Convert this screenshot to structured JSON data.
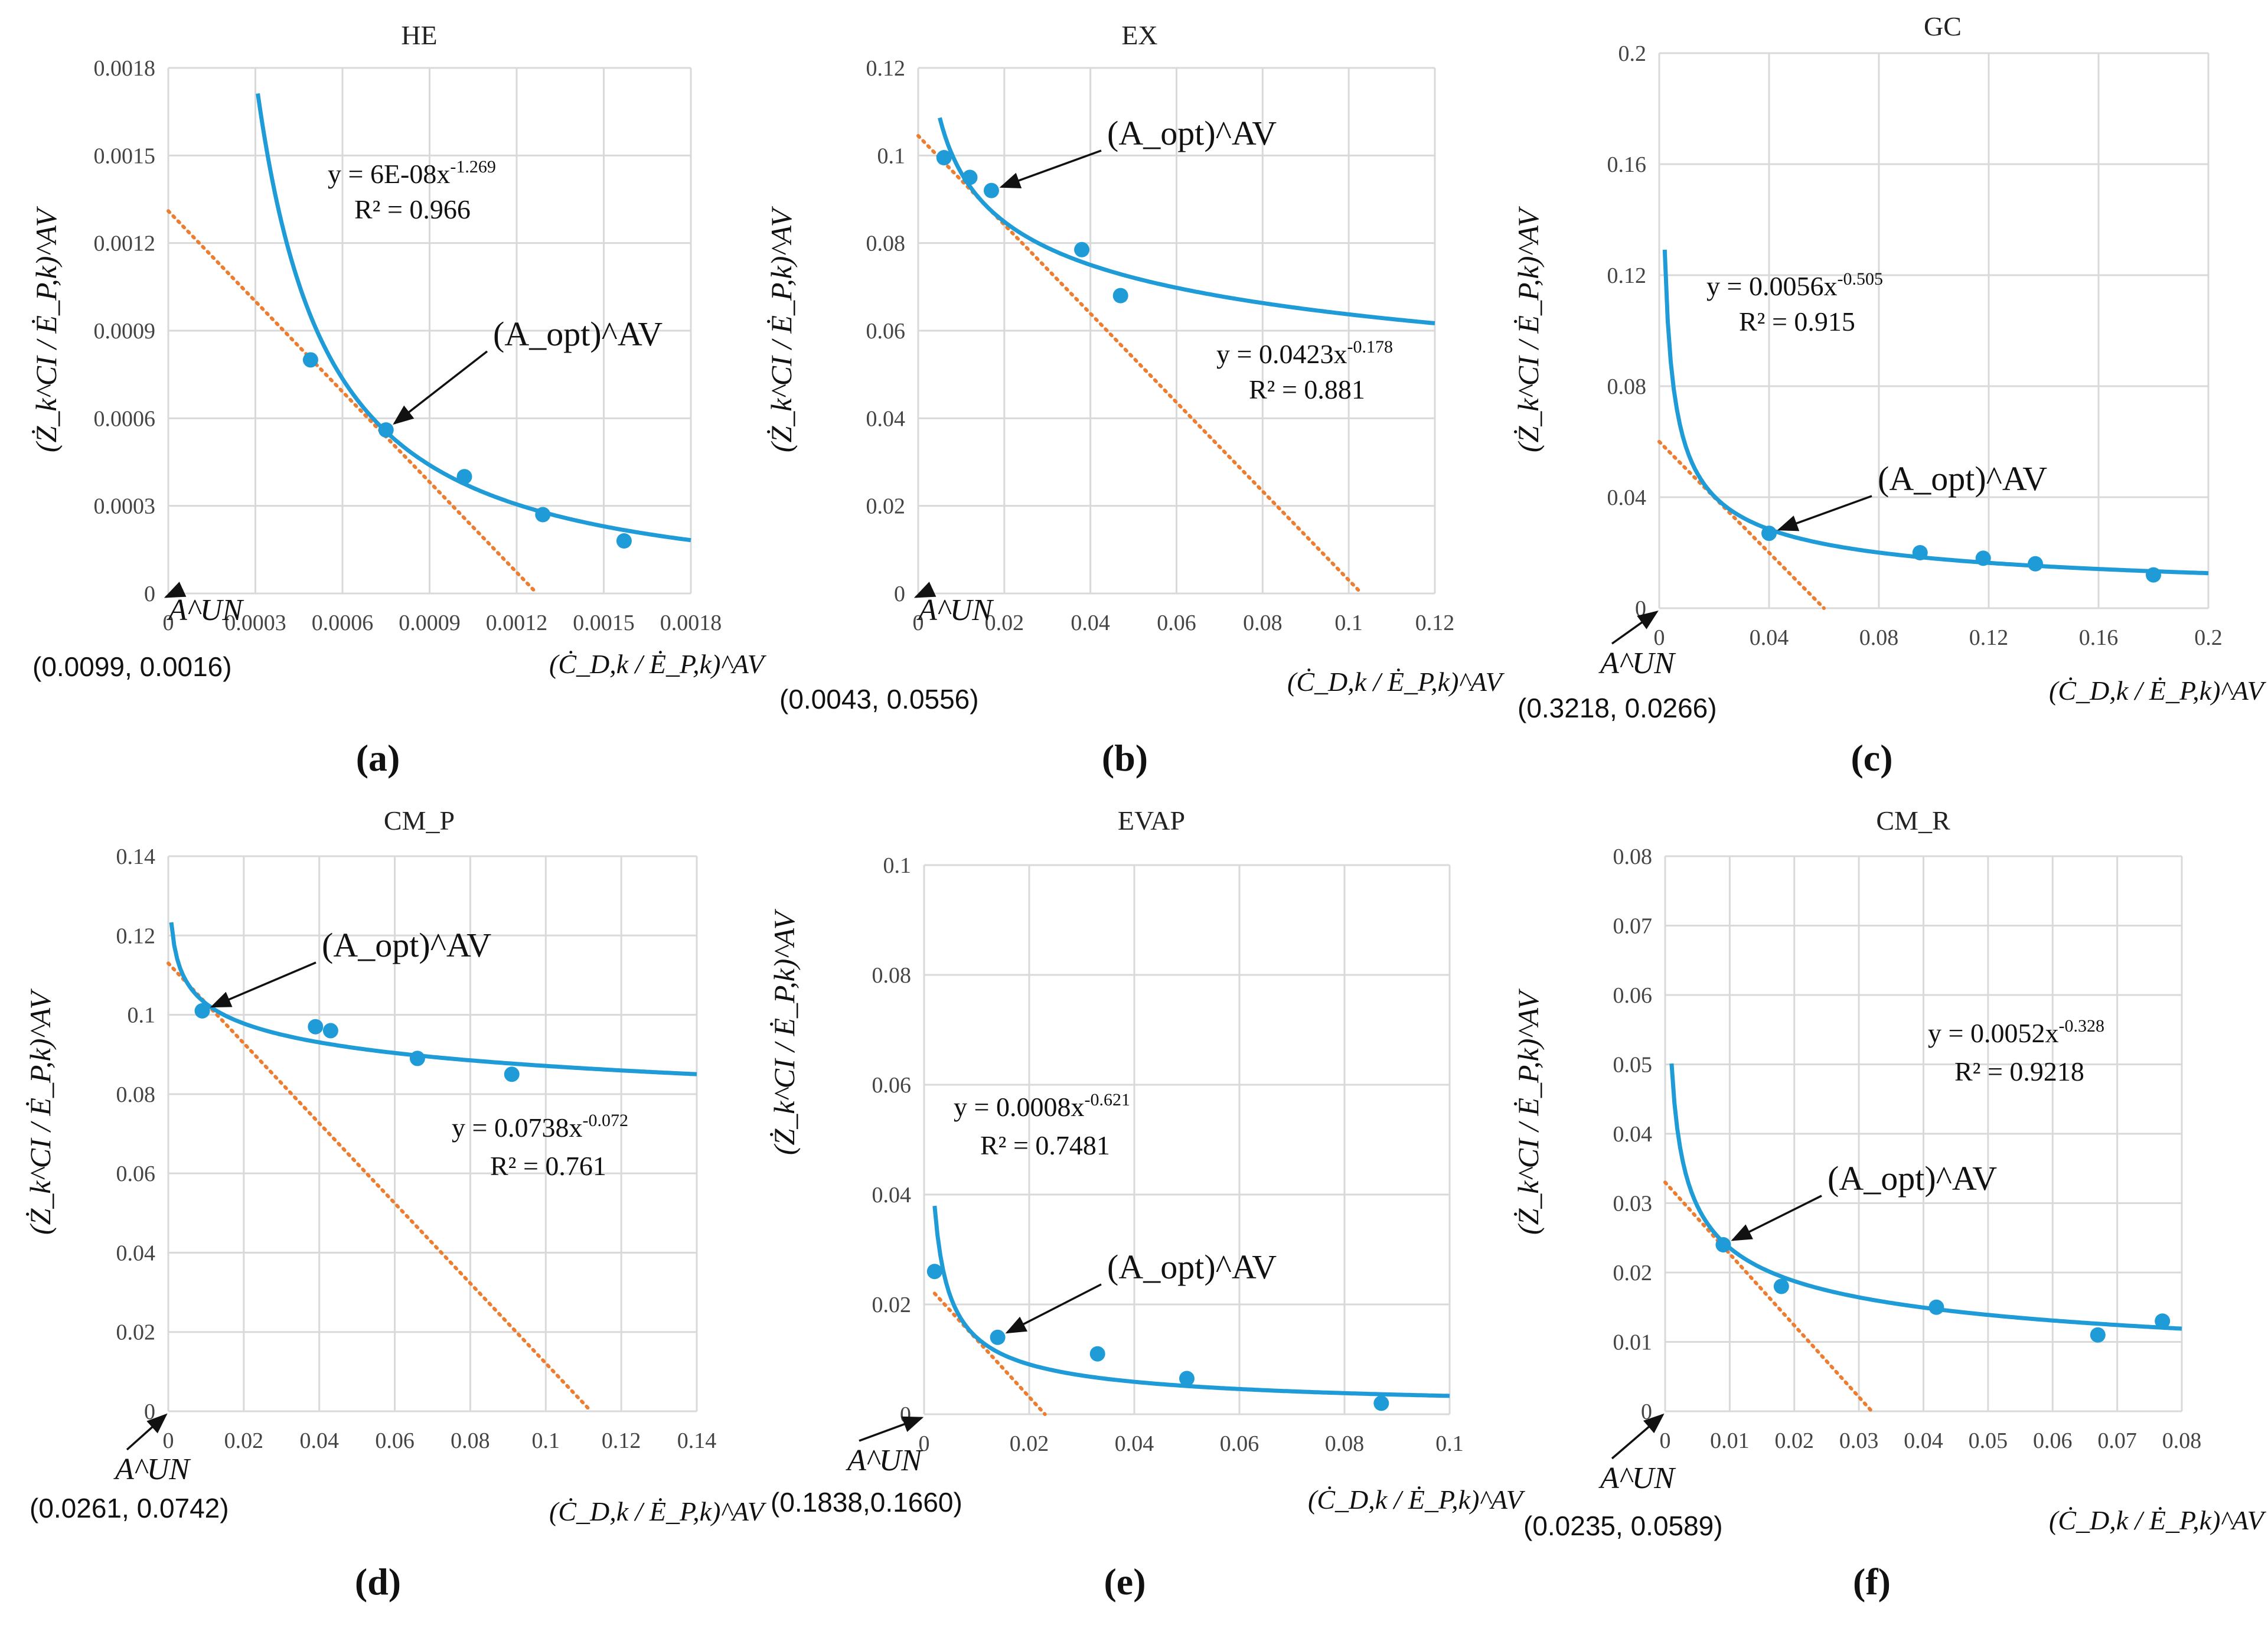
{
  "figure": {
    "panel_labels": [
      "(a)",
      "(b)",
      "(c)",
      "(d)",
      "(e)",
      "(f)"
    ],
    "y_axis_label": "(Ż_k^CI / Ė_P,k)^AV",
    "x_axis_label": "(Ċ_D,k / Ė_P,k)^AV",
    "aopt_label": "(A_opt)^AV",
    "aun_label": "A^UN"
  },
  "colors": {
    "fit": "#1f9bd7",
    "points": "#1f9bd7",
    "tangent": "#ec7d31",
    "grid": "#d9d9d9"
  },
  "chart_data": [
    {
      "type": "scatter",
      "title": "HE",
      "xlim": [
        0,
        0.0018
      ],
      "ylim": [
        0,
        0.0018
      ],
      "xticks": [
        "0",
        "0.0003",
        "0.0006",
        "0.0009",
        "0.0012",
        "0.0015",
        "0.0018"
      ],
      "yticks": [
        "0",
        "0.0003",
        "0.0006",
        "0.0009",
        "0.0012",
        "0.0015",
        "0.0018"
      ],
      "points": {
        "x": [
          0.00049,
          0.00075,
          0.00102,
          0.00129,
          0.00157
        ],
        "y": [
          0.0008,
          0.00056,
          0.0004,
          0.00027,
          0.00018
        ]
      },
      "fit": {
        "a": 6e-08,
        "b": -1.269,
        "xmin": 0.0003,
        "xmax": 0.0018,
        "equation": "y = 6E-08x-1.269",
        "equation_main": "y = 6E-08x",
        "equation_exp": "-1.269",
        "r2": "R² = 0.966"
      },
      "tangent": {
        "x0": 0,
        "y0": 0.00131,
        "x1": 0.00127,
        "y1": 0
      },
      "aopt": {
        "x": 0.00075,
        "y": 0.00056
      },
      "aun_coords": "(0.0099, 0.0016)"
    },
    {
      "type": "scatter",
      "title": "EX",
      "xlim": [
        0,
        0.12
      ],
      "ylim": [
        0,
        0.12
      ],
      "xticks": [
        "0",
        "0.02",
        "0.04",
        "0.06",
        "0.08",
        "0.1",
        "0.12"
      ],
      "yticks": [
        "0",
        "0.02",
        "0.04",
        "0.06",
        "0.08",
        "0.1",
        "0.12"
      ],
      "points": {
        "x": [
          0.006,
          0.012,
          0.017,
          0.038,
          0.047
        ],
        "y": [
          0.0995,
          0.095,
          0.092,
          0.0785,
          0.068
        ]
      },
      "fit": {
        "a": 0.0423,
        "b": -0.178,
        "xmin": 0.005,
        "xmax": 0.12,
        "equation": "y = 0.0423x-0.178",
        "equation_main": "y = 0.0423x",
        "equation_exp": "-0.178",
        "r2": "R² = 0.881"
      },
      "tangent": {
        "x0": 0,
        "y0": 0.1045,
        "x1": 0.103,
        "y1": 0
      },
      "aopt": {
        "x": 0.017,
        "y": 0.092
      },
      "aun_coords": "(0.0043, 0.0556)"
    },
    {
      "type": "scatter",
      "title": "GC",
      "xlim": [
        0,
        0.2
      ],
      "ylim": [
        0,
        0.2
      ],
      "xticks": [
        "0",
        "0.04",
        "0.08",
        "0.12",
        "0.16",
        "0.2"
      ],
      "yticks": [
        "0",
        "0.04",
        "0.08",
        "0.12",
        "0.16",
        "0.2"
      ],
      "points": {
        "x": [
          0.04,
          0.095,
          0.118,
          0.137,
          0.18
        ],
        "y": [
          0.027,
          0.02,
          0.018,
          0.016,
          0.012
        ]
      },
      "fit": {
        "a": 0.0056,
        "b": -0.505,
        "xmin": 0.002,
        "xmax": 0.2,
        "equation": "y = 0.0056x-0.505",
        "equation_main": "y = 0.0056x",
        "equation_exp": "-0.505",
        "r2": "R² = 0.915"
      },
      "tangent": {
        "x0": 0,
        "y0": 0.06,
        "x1": 0.06,
        "y1": 0
      },
      "aopt": {
        "x": 0.04,
        "y": 0.027
      },
      "aun_coords": "(0.3218, 0.0266)"
    },
    {
      "type": "scatter",
      "title": "CM_P",
      "xlim": [
        0,
        0.14
      ],
      "ylim": [
        0,
        0.14
      ],
      "xticks": [
        "0",
        "0.02",
        "0.04",
        "0.06",
        "0.08",
        "0.1",
        "0.12",
        "0.14"
      ],
      "yticks": [
        "0",
        "0.02",
        "0.04",
        "0.06",
        "0.08",
        "0.1",
        "0.12",
        "0.14"
      ],
      "points": {
        "x": [
          0.009,
          0.039,
          0.043,
          0.066,
          0.091
        ],
        "y": [
          0.101,
          0.097,
          0.096,
          0.089,
          0.085
        ]
      },
      "fit": {
        "a": 0.0738,
        "b": -0.072,
        "xmin": 0.0008,
        "xmax": 0.14,
        "equation": "y = 0.0738x-0.072",
        "equation_main": "y = 0.0738x",
        "equation_exp": "-0.072",
        "r2": "R² = 0.761"
      },
      "tangent": {
        "x0": 0,
        "y0": 0.113,
        "x1": 0.112,
        "y1": 0
      },
      "aopt": {
        "x": 0.009,
        "y": 0.101
      },
      "aun_coords": "(0.0261, 0.0742)"
    },
    {
      "type": "scatter",
      "title": "EVAP",
      "xlim": [
        0,
        0.1
      ],
      "ylim": [
        0,
        0.1
      ],
      "xticks": [
        "0",
        "0.02",
        "0.04",
        "0.06",
        "0.08",
        "0.1"
      ],
      "yticks": [
        "0",
        "0.02",
        "0.04",
        "0.06",
        "0.08",
        "0.1"
      ],
      "points": {
        "x": [
          0.002,
          0.014,
          0.033,
          0.05,
          0.087
        ],
        "y": [
          0.026,
          0.014,
          0.011,
          0.0065,
          0.002
        ]
      },
      "fit": {
        "a": 0.0008,
        "b": -0.621,
        "xmin": 0.002,
        "xmax": 0.1,
        "equation": "y = 0.0008x-0.621",
        "equation_main": "y = 0.0008x",
        "equation_exp": "-0.621",
        "r2": "R² = 0.7481"
      },
      "tangent": {
        "x0": 0.002,
        "y0": 0.022,
        "x1": 0.023,
        "y1": 0
      },
      "aopt": {
        "x": 0.014,
        "y": 0.014
      },
      "aun_coords": "(0.1838,0.1660)"
    },
    {
      "type": "scatter",
      "title": "CM_R",
      "xlim": [
        0,
        0.08
      ],
      "ylim": [
        0,
        0.08
      ],
      "xticks": [
        "0",
        "0.01",
        "0.02",
        "0.03",
        "0.04",
        "0.05",
        "0.06",
        "0.07",
        "0.08"
      ],
      "yticks": [
        "0",
        "0.01",
        "0.02",
        "0.03",
        "0.04",
        "0.05",
        "0.06",
        "0.07",
        "0.08"
      ],
      "points": {
        "x": [
          0.009,
          0.018,
          0.042,
          0.067,
          0.077
        ],
        "y": [
          0.024,
          0.018,
          0.015,
          0.011,
          0.013
        ]
      },
      "fit": {
        "a": 0.0052,
        "b": -0.328,
        "xmin": 0.001,
        "xmax": 0.08,
        "equation": "y = 0.0052x-0.328",
        "equation_main": "y = 0.0052x",
        "equation_exp": "-0.328",
        "r2": "R² = 0.9218"
      },
      "tangent": {
        "x0": 0,
        "y0": 0.033,
        "x1": 0.032,
        "y1": 0
      },
      "aopt": {
        "x": 0.009,
        "y": 0.024
      },
      "aun_coords": "(0.0235, 0.0589)"
    }
  ]
}
